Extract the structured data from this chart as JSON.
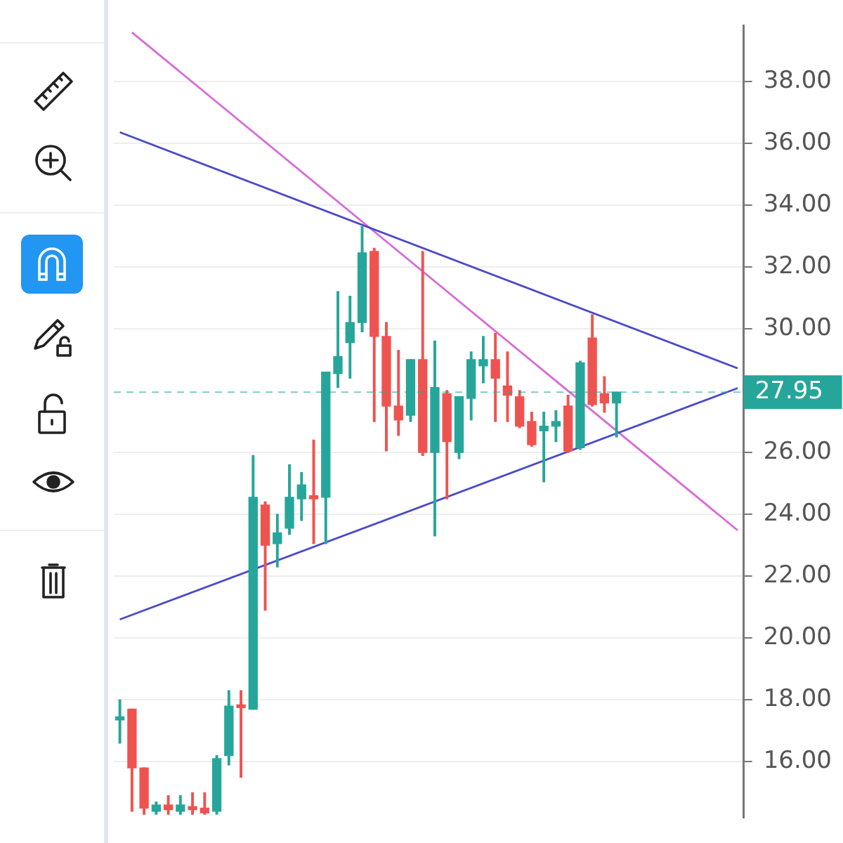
{
  "chart_data": {
    "type": "candlestick",
    "categories": [
      null,
      null,
      null,
      null,
      null,
      null,
      null,
      null,
      null,
      null,
      null,
      null,
      null,
      null,
      null,
      null,
      null,
      null,
      null,
      null,
      null,
      null,
      null,
      null,
      null,
      null,
      null,
      null,
      null,
      null,
      null,
      null,
      null,
      null,
      null,
      null,
      null,
      null,
      null,
      null,
      null,
      null,
      null,
      null,
      null,
      null,
      null,
      null,
      null,
      null,
      null,
      null
    ],
    "ohlc": [
      [
        17.35,
        18.0,
        16.6,
        17.45
      ],
      [
        17.7,
        17.7,
        14.4,
        15.8
      ],
      [
        15.8,
        15.8,
        14.3,
        14.5
      ],
      [
        14.4,
        14.7,
        14.3,
        14.6
      ],
      [
        14.6,
        14.9,
        14.3,
        14.45
      ],
      [
        14.4,
        14.9,
        14.3,
        14.6
      ],
      [
        14.55,
        15.0,
        14.3,
        14.45
      ],
      [
        14.5,
        15.0,
        14.3,
        14.35
      ],
      [
        14.4,
        16.2,
        14.3,
        16.1
      ],
      [
        16.2,
        18.3,
        15.9,
        17.8
      ],
      [
        17.8,
        18.3,
        15.5,
        17.75
      ],
      [
        17.7,
        25.9,
        17.7,
        24.55
      ],
      [
        24.3,
        24.4,
        20.9,
        23.0
      ],
      [
        23.05,
        24.0,
        22.3,
        23.4
      ],
      [
        23.55,
        25.6,
        23.35,
        24.55
      ],
      [
        24.5,
        25.35,
        23.8,
        24.95
      ],
      [
        24.6,
        26.4,
        23.05,
        24.5
      ],
      [
        24.55,
        28.6,
        23.05,
        28.6
      ],
      [
        28.55,
        31.2,
        28.1,
        29.1
      ],
      [
        29.55,
        31.05,
        28.4,
        30.2
      ],
      [
        30.2,
        33.3,
        29.9,
        32.45
      ],
      [
        32.5,
        32.6,
        27.0,
        29.75
      ],
      [
        29.75,
        30.2,
        26.05,
        27.5
      ],
      [
        27.5,
        29.3,
        26.55,
        27.05
      ],
      [
        27.2,
        29.0,
        27.0,
        29.0
      ],
      [
        29.0,
        32.5,
        25.9,
        26.0
      ],
      [
        26.0,
        29.6,
        23.3,
        28.1
      ],
      [
        27.9,
        28.0,
        24.5,
        26.35
      ],
      [
        26.0,
        27.8,
        25.8,
        27.8
      ],
      [
        27.75,
        29.25,
        27.05,
        29.0
      ],
      [
        28.8,
        29.75,
        28.25,
        29.0
      ],
      [
        29.0,
        29.85,
        27.0,
        28.4
      ],
      [
        28.15,
        29.25,
        27.0,
        27.85
      ],
      [
        27.8,
        28.0,
        26.8,
        26.85
      ],
      [
        27.0,
        27.3,
        26.2,
        26.25
      ],
      [
        26.7,
        27.3,
        25.05,
        26.85
      ],
      [
        26.85,
        27.35,
        26.35,
        27.0
      ],
      [
        27.5,
        27.85,
        26.0,
        26.05
      ],
      [
        26.15,
        28.95,
        26.1,
        28.9
      ],
      [
        29.7,
        30.45,
        27.5,
        27.55
      ],
      [
        27.9,
        28.45,
        27.3,
        27.6
      ],
      [
        27.6,
        27.95,
        26.5,
        27.95
      ],
      null,
      null,
      null,
      null,
      null,
      null,
      null,
      null,
      null,
      null
    ],
    "colors": [
      "#26a69a",
      "#ef5350",
      "#ef5350",
      "#26a69a",
      "#ef5350",
      "#26a69a",
      "#ef5350",
      "#ef5350",
      "#26a69a",
      "#26a69a",
      "#ef5350",
      "#26a69a",
      "#ef5350",
      "#26a69a",
      "#26a69a",
      "#26a69a",
      "#ef5350",
      "#26a69a",
      "#26a69a",
      "#26a69a",
      "#26a69a",
      "#ef5350",
      "#ef5350",
      "#ef5350",
      "#26a69a",
      "#ef5350",
      "#26a69a",
      "#ef5350",
      "#26a69a",
      "#26a69a",
      "#26a69a",
      "#ef5350",
      "#ef5350",
      "#ef5350",
      "#ef5350",
      "#26a69a",
      "#26a69a",
      "#ef5350",
      "#26a69a",
      "#ef5350",
      "#ef5350",
      "#26a69a",
      null,
      null,
      null,
      null,
      null,
      null,
      null,
      null,
      null,
      null
    ],
    "series": [
      {
        "type": "line",
        "values": [
          36.35,
          null,
          null,
          null,
          null,
          null,
          null,
          null,
          null,
          null,
          null,
          null,
          null,
          null,
          null,
          null,
          null,
          null,
          null,
          null,
          null,
          null,
          null,
          null,
          null,
          null,
          null,
          null,
          null,
          null,
          null,
          null,
          null,
          null,
          null,
          null,
          null,
          null,
          null,
          null,
          null,
          null,
          null,
          null,
          null,
          null,
          null,
          null,
          null,
          null,
          null,
          28.72
        ],
        "color": "#4a4ac8"
      },
      {
        "type": "line",
        "values": [
          20.6,
          null,
          null,
          null,
          null,
          null,
          null,
          null,
          null,
          null,
          null,
          null,
          null,
          null,
          null,
          null,
          null,
          null,
          null,
          null,
          null,
          null,
          null,
          null,
          null,
          null,
          null,
          null,
          null,
          null,
          null,
          null,
          null,
          null,
          null,
          null,
          null,
          null,
          null,
          null,
          null,
          null,
          null,
          null,
          null,
          null,
          null,
          null,
          null,
          null,
          null,
          28.08
        ],
        "color": "#4a4ac8"
      },
      {
        "type": "line",
        "values": [
          null,
          39.58,
          null,
          null,
          null,
          null,
          null,
          null,
          null,
          null,
          null,
          null,
          null,
          null,
          null,
          null,
          null,
          null,
          null,
          null,
          null,
          null,
          null,
          null,
          null,
          null,
          null,
          null,
          null,
          null,
          null,
          null,
          null,
          null,
          null,
          null,
          null,
          null,
          null,
          null,
          null,
          null,
          null,
          null,
          null,
          null,
          null,
          null,
          null,
          null,
          null,
          23.48
        ],
        "color": "#d86ad8"
      }
    ],
    "ylim": [
      14.2,
      39.8
    ],
    "yticks": [
      {
        "value": 16,
        "label": "16.00"
      },
      {
        "value": 18,
        "label": "18.00"
      },
      {
        "value": 20,
        "label": "20.00"
      },
      {
        "value": 22,
        "label": "22.00"
      },
      {
        "value": 24,
        "label": "24.00"
      },
      {
        "value": 26,
        "label": "26.00"
      },
      {
        "value": 30,
        "label": "30.00"
      },
      {
        "value": 32,
        "label": "32.00"
      },
      {
        "value": 34,
        "label": "34.00"
      },
      {
        "value": 36,
        "label": "36.00"
      },
      {
        "value": 38,
        "label": "38.00"
      }
    ],
    "ref_lines": [
      {
        "axis": "y",
        "value": 27.95,
        "label": "27.95",
        "color": "#26a69a",
        "line_style": "dashed"
      }
    ],
    "tick_labels": "y",
    "grid": "y"
  }
}
